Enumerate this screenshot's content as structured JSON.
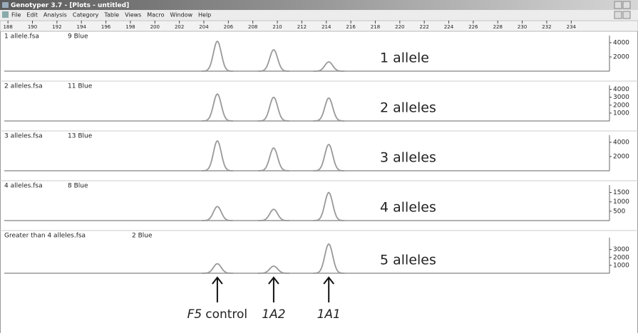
{
  "window": {
    "title": "Genotyper 3.7 - [Plots - untitled]",
    "menu": [
      "File",
      "Edit",
      "Analysis",
      "Category",
      "Table",
      "Views",
      "Macro",
      "Window",
      "Help"
    ]
  },
  "ruler": {
    "xlim": [
      187.7,
      237.3
    ],
    "ticks": [
      188,
      190,
      192,
      194,
      196,
      198,
      200,
      202,
      204,
      206,
      208,
      210,
      212,
      214,
      216,
      218,
      220,
      222,
      224,
      226,
      228,
      230,
      232,
      234
    ]
  },
  "panels": [
    {
      "file": "1 allele.fsa",
      "sample": "9 Blue",
      "label": "1 allele",
      "ylim": [
        0,
        5000
      ],
      "yticks": [
        2000,
        4000
      ],
      "peaks": [
        {
          "x": 205.1,
          "height": 4200
        },
        {
          "x": 209.7,
          "height": 3000
        },
        {
          "x": 214.2,
          "height": 1300
        }
      ]
    },
    {
      "file": "2 alleles.fsa",
      "sample": "11 Blue",
      "label": "2 alleles",
      "ylim": [
        0,
        4500
      ],
      "yticks": [
        1000,
        2000,
        3000,
        4000
      ],
      "peaks": [
        {
          "x": 205.1,
          "height": 3400
        },
        {
          "x": 209.7,
          "height": 3000
        },
        {
          "x": 214.2,
          "height": 2900
        }
      ]
    },
    {
      "file": "3 alleles.fsa",
      "sample": "13 Blue",
      "label": "3 alleles",
      "ylim": [
        0,
        5000
      ],
      "yticks": [
        2000,
        4000
      ],
      "peaks": [
        {
          "x": 205.1,
          "height": 4200
        },
        {
          "x": 209.7,
          "height": 3200
        },
        {
          "x": 214.2,
          "height": 3700
        }
      ]
    },
    {
      "file": "4 alleles.fsa",
      "sample": "8 Blue",
      "label": "4 alleles",
      "ylim": [
        0,
        1900
      ],
      "yticks": [
        500,
        1000,
        1500
      ],
      "peaks": [
        {
          "x": 205.1,
          "height": 750
        },
        {
          "x": 209.7,
          "height": 600
        },
        {
          "x": 214.2,
          "height": 1500
        }
      ]
    },
    {
      "file": "Greater than 4 alleles.fsa",
      "sample": "2 Blue",
      "label": "5 alleles",
      "ylim": [
        0,
        4500
      ],
      "yticks": [
        1000,
        2000,
        3000
      ],
      "peaks": [
        {
          "x": 205.1,
          "height": 1200
        },
        {
          "x": 209.7,
          "height": 900
        },
        {
          "x": 214.2,
          "height": 3700
        }
      ]
    }
  ],
  "markers": [
    {
      "x": 205.1,
      "italic": "F5",
      "text": "control"
    },
    {
      "x": 209.7,
      "italic": "1A2"
    },
    {
      "x": 214.2,
      "italic": "1A1"
    }
  ]
}
